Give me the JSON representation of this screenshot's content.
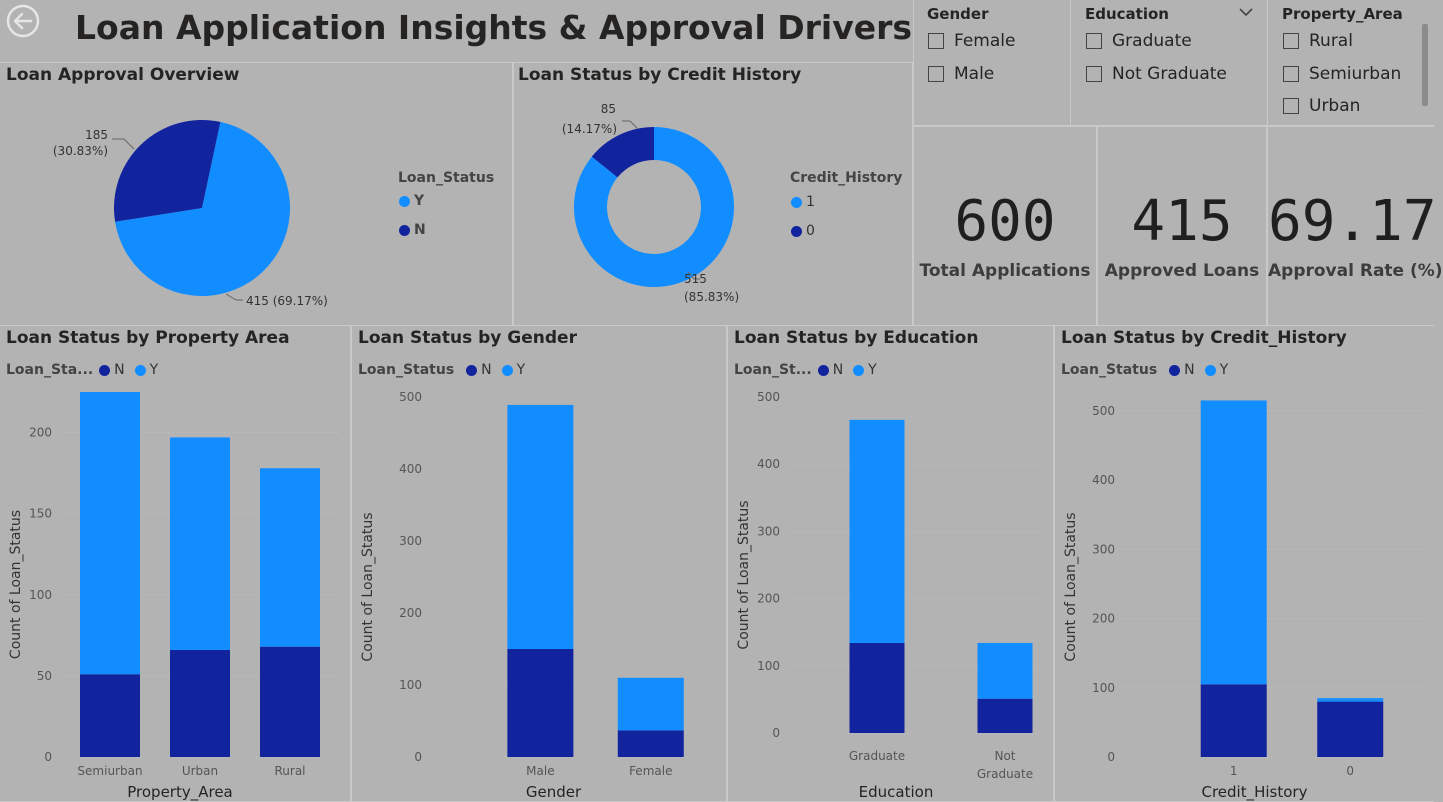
{
  "dashboard": {
    "title": "Loan Application Insights & Approval Drivers"
  },
  "colors": {
    "approved": "#118dff",
    "rejected": "#12239e",
    "background": "#b3b3b3"
  },
  "slicers": {
    "gender": {
      "title": "Gender",
      "options": [
        "Female",
        "Male"
      ]
    },
    "education": {
      "title": "Education",
      "options": [
        "Graduate",
        "Not Graduate"
      ]
    },
    "property_area": {
      "title": "Property_Area",
      "options": [
        "Rural",
        "Semiurban",
        "Urban"
      ]
    }
  },
  "kpis": {
    "total": {
      "value": "600",
      "label": "Total Applications"
    },
    "approved": {
      "value": "415",
      "label": "Approved Loans"
    },
    "rate": {
      "value": "69.17",
      "label": "Approval Rate (%)"
    }
  },
  "chart_data": [
    {
      "type": "pie",
      "title": "Loan Approval Overview",
      "legend_title": "Loan_Status",
      "legend_position": "right",
      "slices": [
        {
          "label": "Y",
          "value": 415,
          "percent": "69.17%",
          "data_label": "415 (69.17%)"
        },
        {
          "label": "N",
          "value": 185,
          "percent": "30.83%",
          "data_label_value": "185",
          "data_label_pct": "(30.83%)"
        }
      ]
    },
    {
      "type": "pie",
      "donut": true,
      "title": "Loan Status by Credit History",
      "legend_title": "Credit_History",
      "legend_position": "right",
      "slices": [
        {
          "label": "1",
          "value": 515,
          "data_label_value": "515",
          "data_label_pct": "(85.83%)"
        },
        {
          "label": "0",
          "value": 85,
          "data_label_value": "85",
          "data_label_pct": "(14.17%)"
        }
      ]
    },
    {
      "type": "bar",
      "stacked": true,
      "title": "Loan Status by Property Area",
      "legend_title": "Loan_Sta...",
      "xlabel": "Property_Area",
      "ylabel": "Count of Loan_Status",
      "ylim": [
        0,
        225
      ],
      "yticks": [
        0,
        50,
        100,
        150,
        200
      ],
      "categories": [
        "Semiurban",
        "Urban",
        "Rural"
      ],
      "series": [
        {
          "name": "N",
          "values": [
            51,
            66,
            68
          ]
        },
        {
          "name": "Y",
          "values": [
            174,
            131,
            110
          ]
        }
      ]
    },
    {
      "type": "bar",
      "stacked": true,
      "title": "Loan Status by Gender",
      "legend_title": "Loan_Status",
      "xlabel": "Gender",
      "ylabel": "Count of Loan_Status",
      "ylim": [
        0,
        500
      ],
      "yticks": [
        0,
        100,
        200,
        300,
        400,
        500
      ],
      "categories": [
        "Male",
        "Female"
      ],
      "series": [
        {
          "name": "N",
          "values": [
            150,
            37
          ]
        },
        {
          "name": "Y",
          "values": [
            339,
            73
          ]
        }
      ]
    },
    {
      "type": "bar",
      "stacked": true,
      "title": "Loan Status by Education",
      "legend_title": "Loan_St...",
      "xlabel": "Education",
      "ylabel": "Count of Loan_Status",
      "ylim": [
        0,
        500
      ],
      "yticks": [
        0,
        100,
        200,
        300,
        400,
        500
      ],
      "categories": [
        "Graduate",
        "Not Graduate"
      ],
      "series": [
        {
          "name": "N",
          "values": [
            134,
            51
          ]
        },
        {
          "name": "Y",
          "values": [
            332,
            83
          ]
        }
      ]
    },
    {
      "type": "bar",
      "stacked": true,
      "title": "Loan Status by Credit_History",
      "legend_title": "Loan_Status",
      "xlabel": "Credit_History",
      "ylabel": "Count of Loan_Status",
      "ylim": [
        0,
        520
      ],
      "yticks": [
        0,
        100,
        200,
        300,
        400,
        500
      ],
      "categories": [
        "1",
        "0"
      ],
      "series": [
        {
          "name": "N",
          "values": [
            105,
            80
          ]
        },
        {
          "name": "Y",
          "values": [
            410,
            5
          ]
        }
      ]
    }
  ]
}
